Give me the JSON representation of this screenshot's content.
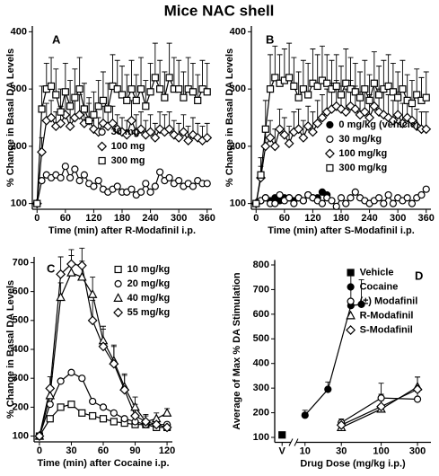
{
  "title": "Mice NAC shell",
  "chart_data": [
    {
      "type": "line",
      "title": "A",
      "xlabel": "Time (min) after R-Modafinil i.p.",
      "ylabel": "% Change in Basal DA Levels",
      "x": [
        0,
        10,
        20,
        30,
        40,
        50,
        60,
        70,
        80,
        90,
        100,
        110,
        120,
        130,
        140,
        150,
        160,
        170,
        180,
        190,
        200,
        210,
        220,
        230,
        240,
        250,
        260,
        270,
        280,
        290,
        300,
        310,
        320,
        330,
        340,
        350,
        360
      ],
      "xlim": [
        -10,
        370
      ],
      "xticks": [
        0,
        60,
        120,
        180,
        240,
        300,
        360
      ],
      "ylim": [
        90,
        410
      ],
      "yticks": [
        100,
        200,
        300,
        400
      ],
      "legend": "center",
      "series": [
        {
          "name": "30 mg",
          "color": "#000000",
          "marker": "circle",
          "filled": false,
          "values": [
            100,
            140,
            150,
            145,
            150,
            145,
            165,
            145,
            160,
            140,
            150,
            135,
            130,
            140,
            125,
            120,
            125,
            130,
            120,
            120,
            125,
            115,
            120,
            135,
            120,
            130,
            155,
            140,
            145,
            135,
            140,
            130,
            135,
            130,
            140,
            135,
            135
          ]
        },
        {
          "name": "100 mg",
          "color": "#000000",
          "marker": "diamond",
          "filled": false,
          "values": [
            100,
            190,
            245,
            250,
            235,
            240,
            255,
            235,
            250,
            255,
            240,
            245,
            230,
            225,
            240,
            235,
            240,
            230,
            225,
            220,
            245,
            225,
            230,
            220,
            225,
            215,
            230,
            225,
            230,
            220,
            215,
            225,
            210,
            220,
            215,
            210,
            215
          ],
          "errors": [
            5,
            25,
            30,
            30,
            25,
            30,
            35,
            30,
            30,
            35,
            30,
            30,
            25,
            25,
            30,
            30,
            30,
            25,
            25,
            25,
            35,
            30,
            30,
            25,
            30,
            25,
            30,
            30,
            30,
            25,
            25,
            30,
            25,
            30,
            25,
            25,
            25
          ]
        },
        {
          "name": "300 mg",
          "color": "#000000",
          "marker": "square",
          "filled": false,
          "values": [
            100,
            265,
            300,
            305,
            290,
            260,
            295,
            270,
            285,
            300,
            265,
            245,
            255,
            270,
            280,
            265,
            305,
            300,
            290,
            280,
            300,
            280,
            300,
            270,
            295,
            320,
            300,
            285,
            320,
            300,
            300,
            285,
            300,
            295,
            280,
            300,
            295
          ],
          "errors": [
            5,
            40,
            45,
            50,
            45,
            40,
            50,
            45,
            50,
            55,
            45,
            40,
            40,
            45,
            50,
            45,
            55,
            50,
            50,
            45,
            50,
            45,
            55,
            45,
            50,
            60,
            50,
            45,
            60,
            55,
            50,
            45,
            55,
            50,
            45,
            50,
            50
          ]
        }
      ]
    },
    {
      "type": "line",
      "title": "B",
      "xlabel": "Time (min) after S-Modafinil i.p.",
      "ylabel": "% Change in Basal DA Levels",
      "x": [
        0,
        10,
        20,
        30,
        40,
        50,
        60,
        70,
        80,
        90,
        100,
        110,
        120,
        130,
        140,
        150,
        160,
        170,
        180,
        190,
        200,
        210,
        220,
        230,
        240,
        250,
        260,
        270,
        280,
        290,
        300,
        310,
        320,
        330,
        340,
        350,
        360
      ],
      "xlim": [
        -10,
        370
      ],
      "xticks": [
        0,
        60,
        120,
        180,
        240,
        300,
        360
      ],
      "ylim": [
        90,
        410
      ],
      "yticks": [
        100,
        200,
        300,
        400
      ],
      "legend": "center right",
      "series": [
        {
          "name": "0 mg/kg (vehicle)",
          "color": "#000000",
          "marker": "circle",
          "filled": true,
          "values": [
            100,
            105,
            110,
            105,
            110,
            105,
            110,
            110,
            105,
            110,
            105,
            115,
            110,
            110,
            120,
            115,
            null,
            null,
            null,
            null,
            null,
            null,
            null,
            null,
            null,
            null,
            null,
            null,
            null,
            null,
            null,
            null,
            null,
            null,
            null,
            null,
            null
          ]
        },
        {
          "name": "30 mg/kg",
          "color": "#000000",
          "marker": "circle",
          "filled": false,
          "values": [
            100,
            105,
            110,
            100,
            100,
            115,
            105,
            110,
            100,
            110,
            105,
            115,
            110,
            105,
            100,
            110,
            105,
            95,
            110,
            100,
            110,
            120,
            110,
            105,
            100,
            105,
            110,
            100,
            115,
            100,
            110,
            105,
            110,
            100,
            110,
            115,
            125
          ]
        },
        {
          "name": "100 mg/kg",
          "color": "#000000",
          "marker": "diamond",
          "filled": false,
          "values": [
            100,
            145,
            200,
            215,
            200,
            230,
            220,
            205,
            225,
            230,
            215,
            235,
            225,
            240,
            250,
            260,
            265,
            270,
            265,
            260,
            270,
            265,
            255,
            260,
            250,
            270,
            260,
            255,
            250,
            245,
            255,
            240,
            250,
            245,
            235,
            230,
            230
          ],
          "errors": [
            5,
            20,
            30,
            30,
            30,
            35,
            30,
            30,
            35,
            35,
            30,
            35,
            35,
            40,
            40,
            40,
            45,
            45,
            40,
            40,
            45,
            40,
            40,
            40,
            40,
            45,
            40,
            40,
            40,
            35,
            40,
            35,
            35,
            35,
            30,
            30,
            30
          ]
        },
        {
          "name": "300 mg/kg",
          "color": "#000000",
          "marker": "square",
          "filled": false,
          "values": [
            100,
            150,
            230,
            300,
            320,
            310,
            315,
            320,
            305,
            285,
            300,
            290,
            310,
            305,
            315,
            310,
            300,
            305,
            290,
            310,
            300,
            295,
            285,
            300,
            280,
            310,
            290,
            300,
            305,
            295,
            285,
            300,
            280,
            275,
            290,
            280,
            285
          ],
          "errors": [
            5,
            30,
            50,
            60,
            55,
            50,
            55,
            60,
            50,
            45,
            50,
            55,
            60,
            55,
            60,
            50,
            50,
            55,
            50,
            60,
            55,
            50,
            45,
            50,
            45,
            55,
            50,
            50,
            55,
            50,
            45,
            50,
            45,
            40,
            45,
            40,
            45
          ]
        }
      ]
    },
    {
      "type": "line",
      "title": "C",
      "xlabel": "Time (min) after Cocaine i.p.",
      "ylabel": "% Change in Basal DA Levels",
      "x": [
        0,
        10,
        20,
        30,
        40,
        50,
        60,
        70,
        80,
        90,
        100,
        110,
        120
      ],
      "xlim": [
        -5,
        125
      ],
      "xticks": [
        0,
        30,
        60,
        90,
        120
      ],
      "ylim": [
        80,
        720
      ],
      "yticks": [
        100,
        200,
        300,
        400,
        500,
        600,
        700
      ],
      "legend": "upper right",
      "series": [
        {
          "name": "10 mg/kg",
          "color": "#000000",
          "marker": "square",
          "filled": false,
          "values": [
            100,
            160,
            200,
            210,
            180,
            170,
            160,
            150,
            145,
            140,
            140,
            130,
            130
          ]
        },
        {
          "name": "20 mg/kg",
          "color": "#000000",
          "marker": "circle",
          "filled": false,
          "values": [
            100,
            210,
            290,
            320,
            300,
            220,
            200,
            180,
            160,
            150,
            140,
            140,
            140
          ]
        },
        {
          "name": "40 mg/kg",
          "color": "#000000",
          "marker": "triangle",
          "filled": false,
          "values": [
            100,
            240,
            580,
            665,
            650,
            590,
            430,
            360,
            270,
            200,
            150,
            160,
            180
          ],
          "errors": [
            5,
            30,
            50,
            60,
            55,
            60,
            50,
            55,
            45,
            35,
            20,
            20,
            15
          ]
        },
        {
          "name": "55 mg/kg",
          "color": "#000000",
          "marker": "diamond",
          "filled": false,
          "values": [
            100,
            265,
            660,
            695,
            690,
            500,
            410,
            350,
            260,
            170,
            150,
            140,
            130
          ],
          "errors": [
            5,
            40,
            60,
            50,
            60,
            70,
            60,
            60,
            50,
            40,
            25,
            20,
            15
          ]
        }
      ]
    },
    {
      "type": "dose",
      "title": "D",
      "xlabel": "Drug Dose (mg/kg i.p.)",
      "ylabel": "Average of Max % DA Stimulation",
      "xscale": "log",
      "xlim": [
        4,
        450
      ],
      "xticks": [
        {
          "value": 5,
          "label": "V"
        },
        10,
        30,
        100,
        300
      ],
      "ylim": [
        80,
        820
      ],
      "yticks": [
        100,
        200,
        300,
        400,
        500,
        600,
        700,
        800
      ],
      "legend": "upper right",
      "series": [
        {
          "name": "Vehicle",
          "color": "#000000",
          "marker": "square",
          "filled": true,
          "x": [
            5
          ],
          "values": [
            110
          ]
        },
        {
          "name": "Cocaine",
          "color": "#000000",
          "marker": "circle",
          "filled": true,
          "x": [
            10,
            20,
            40,
            55
          ],
          "values": [
            190,
            295,
            635,
            640
          ],
          "errors": [
            20,
            30,
            140,
            100
          ]
        },
        {
          "name": "(±) Modafinil",
          "color": "#000000",
          "marker": "circle",
          "filled": false,
          "x": [
            30,
            100,
            300
          ],
          "values": [
            160,
            260,
            255
          ],
          "errors": [
            15,
            60,
            30
          ]
        },
        {
          "name": "R-Modafinil",
          "color": "#000000",
          "marker": "triangle",
          "filled": false,
          "x": [
            30,
            100,
            300
          ],
          "values": [
            140,
            215,
            305
          ],
          "errors": [
            15,
            40,
            40
          ]
        },
        {
          "name": "S-Modafinil",
          "color": "#000000",
          "marker": "diamond",
          "filled": false,
          "x": [
            30,
            100,
            300
          ],
          "values": [
            150,
            225,
            295
          ],
          "errors": [
            15,
            50,
            50
          ]
        }
      ]
    }
  ]
}
